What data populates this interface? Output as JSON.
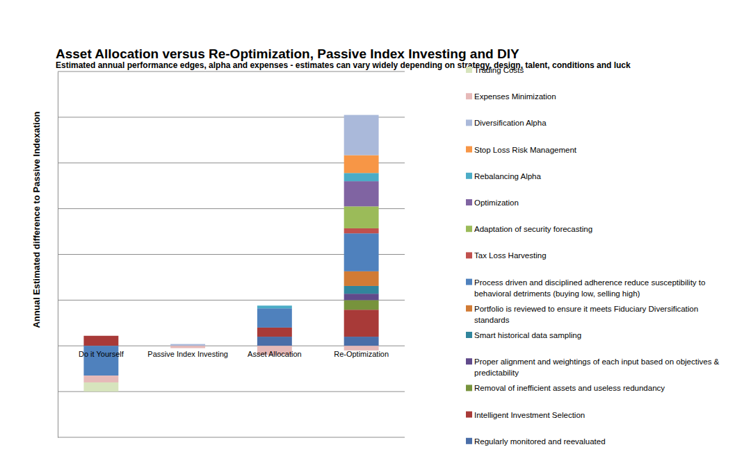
{
  "chart_data": {
    "type": "bar",
    "title": "Asset Allocation versus Re-Optimization, Passive Index Investing and DIY",
    "subtitle": "Estimated annual performance edges, alpha and expenses - estimates can vary widely depending on strategy, design, talent, conditions and luck",
    "y_label": "Annual Estimated difference to Passive Indexation",
    "categories": [
      "Do it Yourself",
      "Passive Index Investing",
      "Asset Allocation",
      "Re-Optimization"
    ],
    "series": [
      {
        "name": "Regularly monitored and reevaluated",
        "color": "#4a6ea8",
        "values": [
          0,
          0,
          0.2,
          0.2
        ]
      },
      {
        "name": "Intelligent Investment Selection",
        "color": "#a83a38",
        "values": [
          0.22,
          0,
          0.2,
          0.59
        ]
      },
      {
        "name": "Removal of inefficient assets and useless redundancy",
        "color": "#77933c",
        "values": [
          0,
          0,
          0,
          0.21
        ]
      },
      {
        "name": "Proper alignment and weightings of each input based on objectives & predictability",
        "color": "#604a8b",
        "values": [
          0,
          0,
          0,
          0.14
        ]
      },
      {
        "name": "Smart historical data sampling",
        "color": "#31859c",
        "values": [
          0,
          0,
          0,
          0.17
        ]
      },
      {
        "name": "Portfolio is reviewed to ensure it meets Fiduciary Diversification standards",
        "color": "#d17b35",
        "values": [
          0,
          0,
          0,
          0.32
        ]
      },
      {
        "name": "Process driven and disciplined adherence reduce susceptibility to behavioral detriments (buying low, selling high)",
        "color": "#4f81bd",
        "values": [
          -0.65,
          0,
          0.42,
          0.83
        ]
      },
      {
        "name": "Tax Loss Harvesting",
        "color": "#c0504d",
        "values": [
          0,
          0,
          0,
          0.11
        ]
      },
      {
        "name": "Adaptation of security forecasting",
        "color": "#9bbb59",
        "values": [
          0,
          0,
          0,
          0.48
        ]
      },
      {
        "name": "Optimization",
        "color": "#8064a2",
        "values": [
          0,
          0,
          0,
          0.55
        ]
      },
      {
        "name": "Rebalancing Alpha",
        "color": "#4bacc6",
        "values": [
          0,
          0,
          0.06,
          0.18
        ]
      },
      {
        "name": "Stop Loss Risk Management",
        "color": "#f79646",
        "values": [
          0,
          0,
          0,
          0.39
        ]
      },
      {
        "name": "Diversification Alpha",
        "color": "#aab9da",
        "values": [
          0,
          0.04,
          0,
          0.88
        ]
      },
      {
        "name": "Expenses Minimization",
        "color": "#e6b9b8",
        "values": [
          -0.15,
          -0.05,
          -0.2,
          -0.1
        ]
      },
      {
        "name": "Trading Costs",
        "color": "#d7e4bd",
        "values": [
          -0.2,
          0,
          0,
          0
        ]
      }
    ],
    "stacked": true,
    "ylim": [
      -2,
      6
    ],
    "yticks": [
      -2,
      -1,
      0,
      1,
      2,
      3,
      4,
      5,
      6
    ],
    "grid": true,
    "legend": "right",
    "tick_labels": "x"
  }
}
